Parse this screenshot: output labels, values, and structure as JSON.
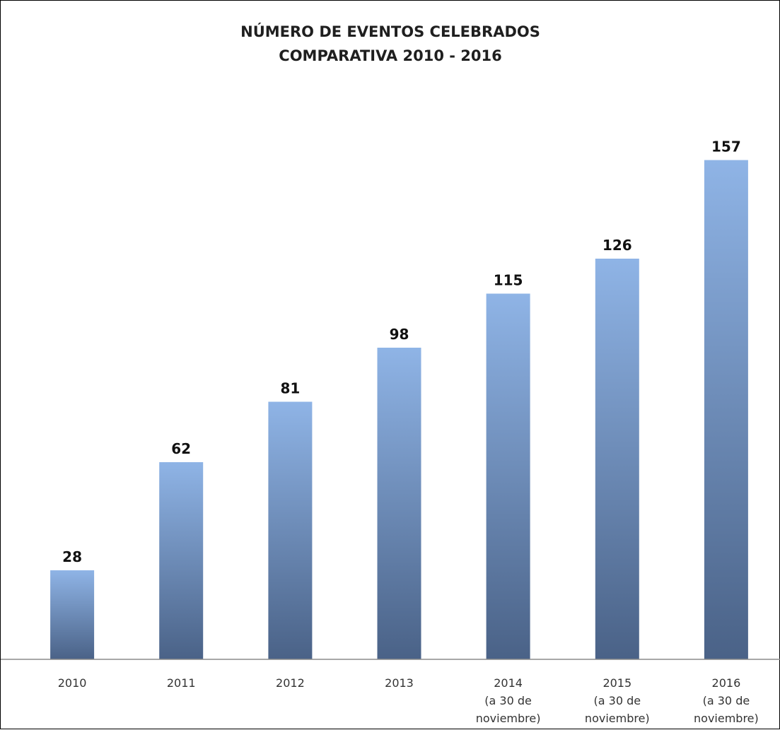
{
  "chart_data": {
    "type": "bar",
    "title": [
      "NÚMERO DE EVENTOS CELEBRADOS",
      "COMPARATIVA 2010 - 2016"
    ],
    "xlabel": "",
    "ylabel": "",
    "categories": [
      [
        "2010"
      ],
      [
        "2011"
      ],
      [
        "2012"
      ],
      [
        "2013"
      ],
      [
        "2014",
        "(a 30 de",
        "noviembre)"
      ],
      [
        "2015",
        "(a 30 de",
        "noviembre)"
      ],
      [
        "2016",
        "(a 30 de",
        "noviembre)"
      ]
    ],
    "values": [
      28,
      62,
      81,
      98,
      115,
      126,
      157
    ],
    "data_labels": [
      "28",
      "62",
      "81",
      "98",
      "115",
      "126",
      "157"
    ],
    "ylim": [
      0,
      176
    ],
    "grid": false,
    "legend": "none",
    "colors": {
      "bar_top": "#8fb4e6",
      "bar_bottom": "#4a6287",
      "axis": "#8c8c8c",
      "text": "#1f1f1f"
    }
  }
}
